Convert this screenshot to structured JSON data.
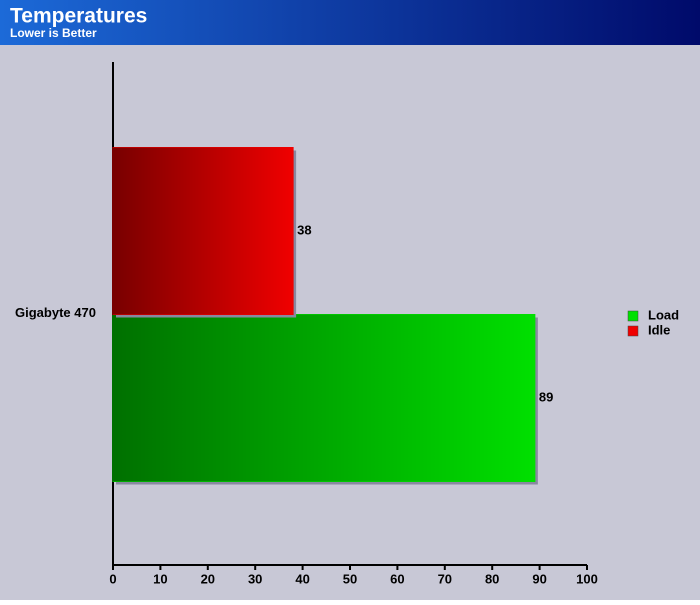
{
  "chart_data": {
    "type": "bar",
    "orientation": "horizontal",
    "title": "Temperatures",
    "subtitle": "Lower is Better",
    "categories": [
      "Gigabyte 470"
    ],
    "series": [
      {
        "name": "Load",
        "color": "#00e000",
        "values": [
          89
        ]
      },
      {
        "name": "Idle",
        "color": "#f00000",
        "values": [
          38
        ]
      }
    ],
    "xlim": [
      0,
      100
    ],
    "xticks": [
      0,
      10,
      20,
      30,
      40,
      50,
      60,
      70,
      80,
      90,
      100
    ],
    "grid": false,
    "legend": "right"
  }
}
